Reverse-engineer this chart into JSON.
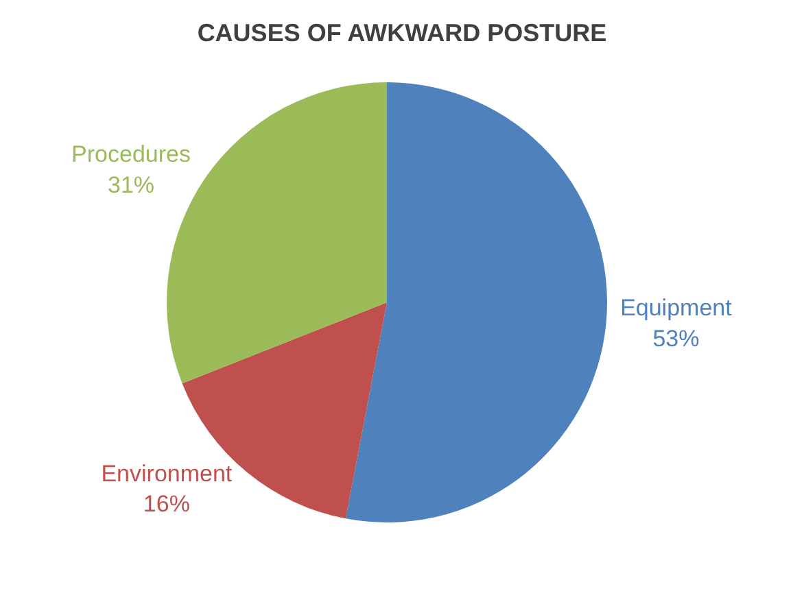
{
  "chart_data": {
    "type": "pie",
    "title": "CAUSES OF AWKWARD POSTURE",
    "categories": [
      "Equipment",
      "Environment",
      "Procedures"
    ],
    "values": [
      53,
      16,
      31
    ],
    "value_labels": [
      "53%",
      "16%",
      "31%"
    ],
    "colors": [
      "#4f81bd",
      "#c0504d",
      "#9bbb59"
    ],
    "legend": false
  }
}
